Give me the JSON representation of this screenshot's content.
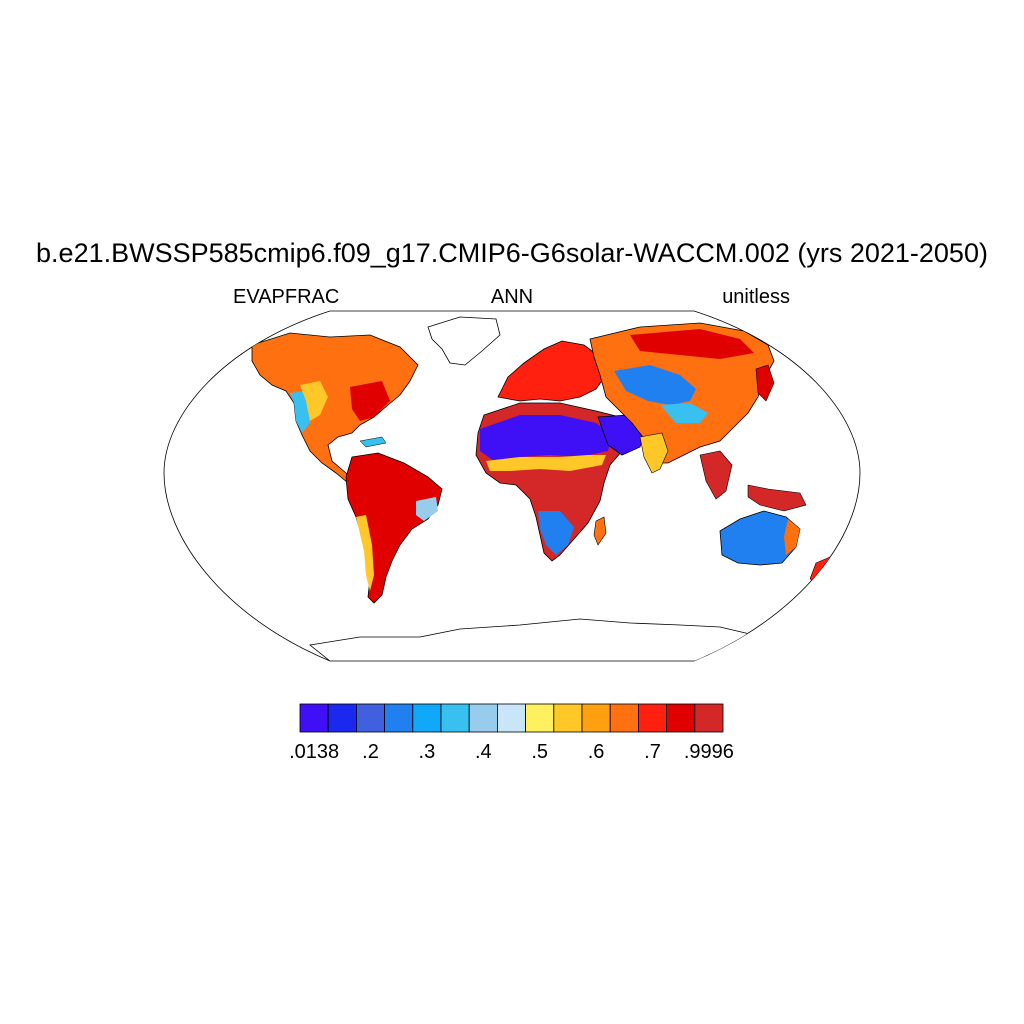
{
  "title": "b.e21.BWSSP585cmip6.f09_g17.CMIP6-G6solar-WACCM.002 (yrs 2021-2050)",
  "subtitle": {
    "left": "EVAPFRAC",
    "center": "ANN",
    "right": "unitless"
  },
  "map": {
    "projection": "robinson",
    "ocean_color": "#ffffff",
    "coastline_color": "#000000",
    "field": "EVAPFRAC"
  },
  "colorbar": {
    "colors": [
      "#3f10f5",
      "#1a28f0",
      "#4060e0",
      "#2080f0",
      "#10a8f8",
      "#38c0f0",
      "#98ccec",
      "#c8e6f8",
      "#fff060",
      "#ffc828",
      "#ffa010",
      "#ff7010",
      "#ff2010",
      "#e00000",
      "#d42828"
    ],
    "labels": [
      {
        "text": ".0138",
        "boundary": 0
      },
      {
        "text": ".2",
        "boundary": 2
      },
      {
        "text": ".3",
        "boundary": 4
      },
      {
        "text": ".4",
        "boundary": 6
      },
      {
        "text": ".5",
        "boundary": 8
      },
      {
        "text": ".6",
        "boundary": 10
      },
      {
        "text": ".7",
        "boundary": 12
      },
      {
        "text": ".9996",
        "boundary": 14
      }
    ]
  }
}
